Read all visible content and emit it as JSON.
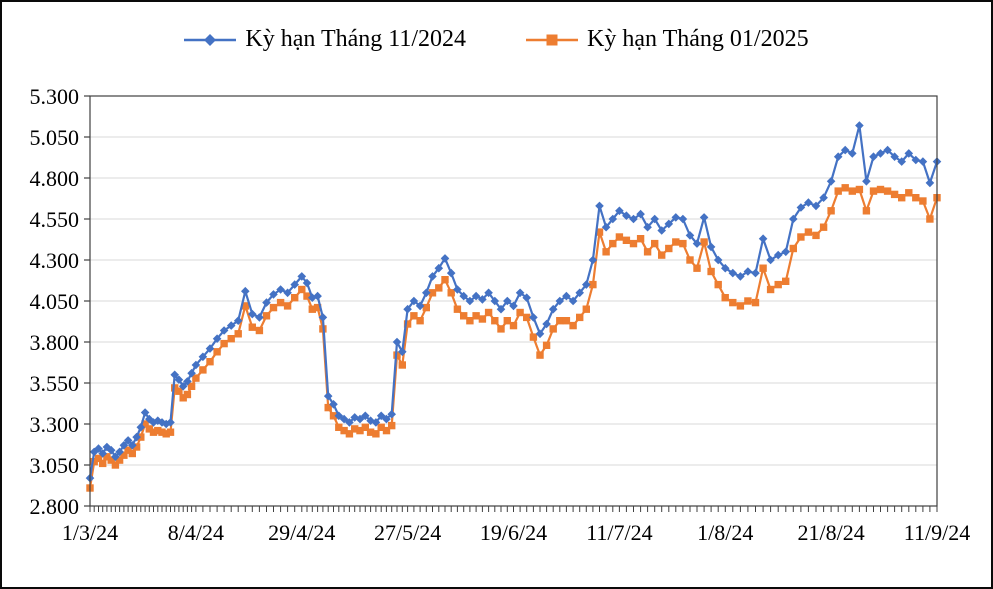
{
  "figure": {
    "background": "#ffffff",
    "border_color": "#0a0a0a"
  },
  "chart_data": {
    "type": "line",
    "title": "",
    "xlabel": "",
    "ylabel": "",
    "legend_position": "top",
    "grid": "horizontal",
    "grid_color": "#d9d9d9",
    "axis_color": "#404040",
    "x_axis": {
      "tick_labels": [
        "1/3/24",
        "8/4/24",
        "29/4/24",
        "27/5/24",
        "19/6/24",
        "11/7/24",
        "1/8/24",
        "21/8/24",
        "11/9/24"
      ],
      "tick_indices": [
        0,
        25,
        40,
        60,
        77,
        93,
        108,
        122,
        137
      ],
      "n_points": 138
    },
    "y_axis": {
      "tick_labels": [
        "2.800",
        "3.050",
        "3.300",
        "3.550",
        "3.800",
        "4.050",
        "4.300",
        "4.550",
        "4.800",
        "5.050",
        "5.300"
      ],
      "min": 2.8,
      "max": 5.3,
      "step": 0.25
    },
    "series": [
      {
        "name": "Kỳ hạn Tháng 11/2024",
        "color": "#4472C4",
        "marker": "diamond",
        "values": [
          2.97,
          3.13,
          3.15,
          3.12,
          3.16,
          3.14,
          3.1,
          3.13,
          3.17,
          3.2,
          3.17,
          3.22,
          3.28,
          3.37,
          3.33,
          3.31,
          3.32,
          3.31,
          3.3,
          3.31,
          3.6,
          3.57,
          3.53,
          3.56,
          3.61,
          3.66,
          3.71,
          3.76,
          3.82,
          3.87,
          3.9,
          3.93,
          4.11,
          3.97,
          3.95,
          4.04,
          4.09,
          4.12,
          4.1,
          4.15,
          4.2,
          4.16,
          4.07,
          4.08,
          3.95,
          3.47,
          3.42,
          3.35,
          3.33,
          3.31,
          3.34,
          3.33,
          3.35,
          3.32,
          3.31,
          3.35,
          3.33,
          3.36,
          3.8,
          3.74,
          4.0,
          4.05,
          4.02,
          4.1,
          4.2,
          4.25,
          4.31,
          4.22,
          4.12,
          4.08,
          4.05,
          4.08,
          4.06,
          4.1,
          4.05,
          4.0,
          4.05,
          4.02,
          4.1,
          4.07,
          3.95,
          3.85,
          3.91,
          4.0,
          4.05,
          4.08,
          4.05,
          4.1,
          4.15,
          4.3,
          4.63,
          4.5,
          4.55,
          4.6,
          4.57,
          4.55,
          4.58,
          4.5,
          4.55,
          4.48,
          4.52,
          4.56,
          4.55,
          4.45,
          4.4,
          4.56,
          4.38,
          4.3,
          4.25,
          4.22,
          4.2,
          4.23,
          4.22,
          4.43,
          4.3,
          4.33,
          4.35,
          4.55,
          4.62,
          4.65,
          4.63,
          4.68,
          4.78,
          4.93,
          4.97,
          4.95,
          5.12,
          4.78,
          4.93,
          4.95,
          4.97,
          4.93,
          4.9,
          4.95,
          4.91,
          4.9,
          4.77,
          4.9
        ]
      },
      {
        "name": "Kỳ hạn Tháng 01/2025",
        "color": "#ED7D31",
        "marker": "square",
        "values": [
          2.91,
          3.07,
          3.09,
          3.06,
          3.1,
          3.08,
          3.05,
          3.08,
          3.11,
          3.14,
          3.12,
          3.16,
          3.22,
          3.3,
          3.27,
          3.25,
          3.26,
          3.25,
          3.24,
          3.25,
          3.52,
          3.5,
          3.46,
          3.48,
          3.53,
          3.58,
          3.63,
          3.68,
          3.74,
          3.79,
          3.82,
          3.85,
          4.02,
          3.89,
          3.87,
          3.96,
          4.01,
          4.04,
          4.02,
          4.07,
          4.12,
          4.08,
          4.0,
          4.01,
          3.88,
          3.4,
          3.35,
          3.28,
          3.26,
          3.24,
          3.27,
          3.26,
          3.28,
          3.25,
          3.24,
          3.28,
          3.26,
          3.29,
          3.72,
          3.66,
          3.91,
          3.96,
          3.93,
          4.01,
          4.1,
          4.13,
          4.18,
          4.1,
          4.0,
          3.96,
          3.93,
          3.96,
          3.94,
          3.98,
          3.93,
          3.88,
          3.93,
          3.9,
          3.98,
          3.95,
          3.83,
          3.72,
          3.78,
          3.88,
          3.93,
          3.93,
          3.9,
          3.95,
          4.0,
          4.15,
          4.47,
          4.35,
          4.4,
          4.44,
          4.42,
          4.4,
          4.43,
          4.35,
          4.4,
          4.33,
          4.37,
          4.41,
          4.4,
          4.3,
          4.25,
          4.41,
          4.23,
          4.15,
          4.07,
          4.04,
          4.02,
          4.05,
          4.04,
          4.25,
          4.12,
          4.15,
          4.17,
          4.37,
          4.44,
          4.47,
          4.45,
          4.5,
          4.6,
          4.72,
          4.74,
          4.72,
          4.73,
          4.6,
          4.72,
          4.73,
          4.72,
          4.7,
          4.68,
          4.71,
          4.68,
          4.66,
          4.55,
          4.68
        ]
      }
    ]
  }
}
